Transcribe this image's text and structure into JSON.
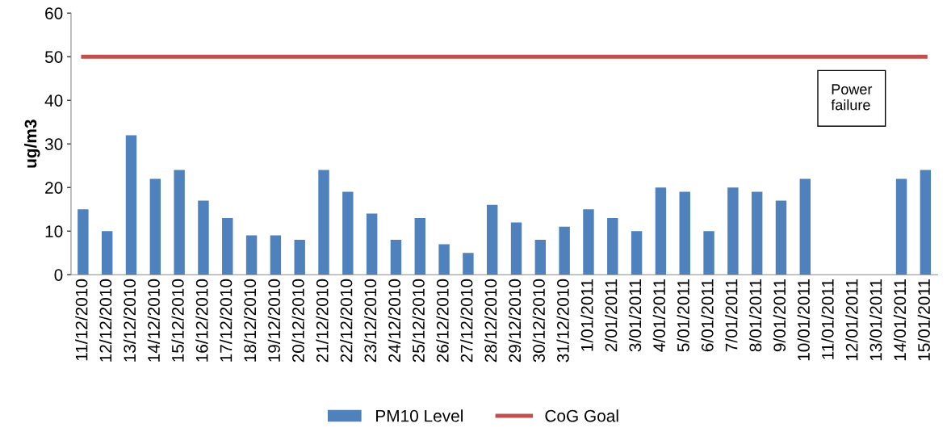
{
  "chart_data": {
    "type": "bar",
    "ylabel": "ug/m3",
    "categories": [
      "11/12/2010",
      "12/12/2010",
      "13/12/2010",
      "14/12/2010",
      "15/12/2010",
      "16/12/2010",
      "17/12/2010",
      "18/12/2010",
      "19/12/2010",
      "20/12/2010",
      "21/12/2010",
      "22/12/2010",
      "23/12/2010",
      "24/12/2010",
      "25/12/2010",
      "26/12/2010",
      "27/12/2010",
      "28/12/2010",
      "29/12/2010",
      "30/12/2010",
      "31/12/2010",
      "1/01/2011",
      "2/01/2011",
      "3/01/2011",
      "4/01/2011",
      "5/01/2011",
      "6/01/2011",
      "7/01/2011",
      "8/01/2011",
      "9/01/2011",
      "10/01/2011",
      "11/01/2011",
      "12/01/2011",
      "13/01/2011",
      "14/01/2011",
      "15/01/2011"
    ],
    "series": [
      {
        "name": "PM10 Level",
        "color": "#4f81bd",
        "values": [
          15,
          10,
          32,
          22,
          24,
          17,
          13,
          9,
          9,
          8,
          24,
          19,
          14,
          8,
          13,
          7,
          5,
          16,
          12,
          8,
          11,
          15,
          13,
          10,
          20,
          19,
          10,
          20,
          19,
          17,
          22,
          null,
          null,
          null,
          22,
          24
        ]
      },
      {
        "name": "CoG Goal",
        "type": "line",
        "color": "#c0504d",
        "values": [
          50,
          50,
          50,
          50,
          50,
          50,
          50,
          50,
          50,
          50,
          50,
          50,
          50,
          50,
          50,
          50,
          50,
          50,
          50,
          50,
          50,
          50,
          50,
          50,
          50,
          50,
          50,
          50,
          50,
          50,
          50,
          50,
          50,
          50,
          50,
          50
        ]
      }
    ],
    "ylim": [
      0,
      60
    ],
    "yticks": [
      0,
      10,
      20,
      30,
      40,
      50,
      60
    ],
    "annotations": [
      "Power\nfailure"
    ],
    "grid": false,
    "legend": "bottom"
  }
}
